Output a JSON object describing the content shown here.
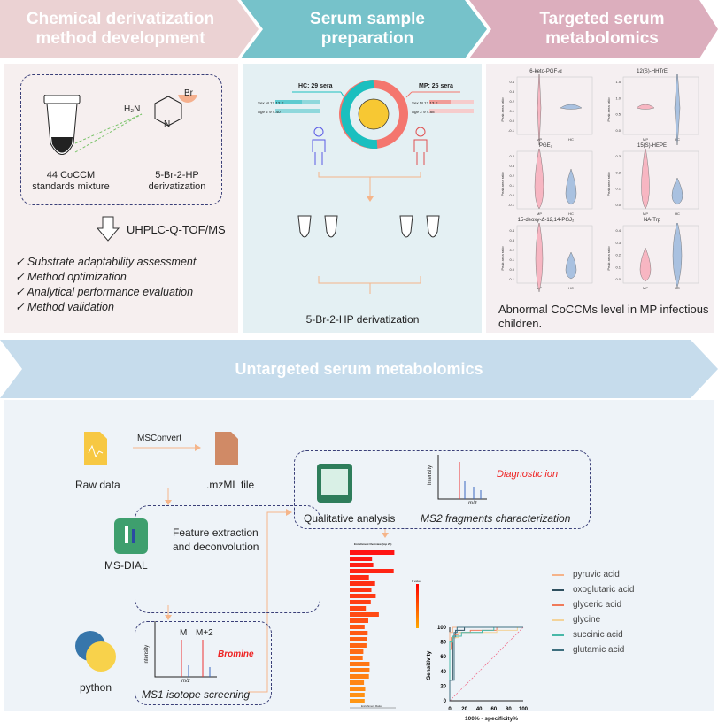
{
  "header": {
    "step1": "Chemical derivatization method development",
    "step2": "Serum sample preparation",
    "step3": "Targeted serum metabolomics",
    "untargeted": "Untargeted serum metabolomics"
  },
  "panel1": {
    "tube_label": "44 CoCCM standards mixture",
    "reagent_label": "5-Br-2-HP derivatization",
    "reagent_atoms": {
      "h2n": "H₂N",
      "n": "N",
      "br": "Br",
      "h": "H"
    },
    "instrument": "UHPLC-Q-TOF/MS",
    "checklist": [
      "Substrate adaptability assessment",
      "Method optimization",
      "Analytical performance evaluation",
      "Method validation"
    ]
  },
  "panel2": {
    "hc_label": "HC: 29 sera",
    "mp_label": "MP: 25 sera",
    "hc": {
      "sex_label": "Sex",
      "m": "M",
      "m_val": "17",
      "f_val": "12",
      "f": "F",
      "age_label": "Age",
      "age_min": "2",
      "age_max": "9",
      "age_mean": "4.40"
    },
    "mp": {
      "sex_label": "Sex",
      "m": "M",
      "m_val": "12",
      "f_val": "13",
      "f": "F",
      "age_label": "Age",
      "age_min": "2",
      "age_max": "9",
      "age_mean": "4.88"
    },
    "hc_fraction": 0.537,
    "derivatization": "5-Br-2-HP derivatization",
    "colors": {
      "hc": "#1bbfbf",
      "mp": "#f4766e"
    }
  },
  "panel3": {
    "plots": [
      {
        "title": "6-keto-PGF₁α",
        "yticks": [
          "0.4",
          "0.3",
          "0.2",
          "0.1",
          "0.0",
          "-0.1"
        ]
      },
      {
        "title": "12(S)-HHTrE",
        "yticks": [
          "1.5",
          "1.0",
          "0.5",
          "0.0"
        ]
      },
      {
        "title": "PGE₂",
        "yticks": [
          "0.4",
          "0.3",
          "0.2",
          "0.1",
          "0.0",
          "-0.1"
        ]
      },
      {
        "title": "15(S)-HEPE",
        "yticks": [
          "0.3",
          "0.2",
          "0.1",
          "0.0"
        ]
      },
      {
        "title": "15-deoxy-Δ-12,14-PGJ₂",
        "yticks": [
          "0.4",
          "0.3",
          "0.2",
          "0.1",
          "0.0",
          "-0.1"
        ]
      },
      {
        "title": "NA-Trp",
        "yticks": [
          "0.4",
          "0.3",
          "0.2",
          "0.1",
          "0.0"
        ]
      }
    ],
    "ylabel": "Peak area ratio",
    "xcats": [
      "MP",
      "HC"
    ],
    "conclusion": "Abnormal CoCCMs level in MP infectious children.",
    "colors": {
      "mp": "#f7b6c2",
      "hc": "#a9c1e0"
    }
  },
  "untargeted": {
    "raw_data": "Raw data",
    "msconvert": "MSConvert",
    "mzml": ".mzML file",
    "feature": "Feature extraction and deconvolution",
    "msdial": "MS-DIAL",
    "python": "python",
    "ms1": "MS1 isotope screening",
    "m": "M",
    "m2": "M+2",
    "bromine": "Bromine",
    "intensity": "Intensity",
    "mz": "m/z",
    "qualitative": "Qualitative analysis",
    "diagnostic": "Diagnostic ion",
    "ms2": "MS2 fragments characterization",
    "enrichment_title": "Enrichment Overview (top 25)",
    "enrichment_xlabel": "Enrichment Ratio",
    "pvalue": "P value",
    "enrichment_values": [
      7.2,
      3.6,
      3.8,
      7.1,
      3.1,
      4.1,
      3.5,
      4.2,
      3.4,
      2.6,
      4.7,
      3.0,
      2.4,
      2.9,
      2.8,
      2.7,
      2.2,
      2.1,
      3.2,
      3.2,
      3.1,
      2.3,
      2.5,
      2.4,
      2.4
    ]
  },
  "chart_data": {
    "type": "line",
    "xlabel": "100% - specificity%",
    "ylabel": "Sensitivity",
    "xlim": [
      0,
      100
    ],
    "ylim": [
      0,
      100
    ],
    "xticks": [
      "0",
      "20",
      "40",
      "60",
      "80",
      "100"
    ],
    "yticks": [
      "0",
      "20",
      "40",
      "60",
      "80",
      "100"
    ],
    "legend": "right",
    "series": [
      {
        "name": "pyruvic acid",
        "color": "#f5b38a",
        "x": [
          0,
          0,
          4,
          4,
          100
        ],
        "y": [
          0,
          93,
          93,
          100,
          100
        ]
      },
      {
        "name": "oxoglutaric acid",
        "color": "#2f4f5f",
        "x": [
          0,
          0,
          4,
          4,
          8,
          8,
          20,
          20,
          100
        ],
        "y": [
          0,
          28,
          28,
          86,
          86,
          96,
          96,
          100,
          100
        ]
      },
      {
        "name": "glyceric acid",
        "color": "#f07a5a",
        "x": [
          0,
          0,
          2,
          2,
          6,
          6,
          12,
          12,
          28,
          28,
          64,
          64,
          100
        ],
        "y": [
          0,
          70,
          70,
          86,
          86,
          90,
          90,
          93,
          93,
          96,
          96,
          100,
          100
        ]
      },
      {
        "name": "glycine",
        "color": "#f3d39a",
        "x": [
          0,
          0,
          4,
          4,
          12,
          12,
          64,
          64,
          92,
          92,
          100
        ],
        "y": [
          0,
          80,
          80,
          86,
          86,
          93,
          93,
          96,
          96,
          100,
          100
        ]
      },
      {
        "name": "succinic acid",
        "color": "#48b8a8",
        "x": [
          0,
          0,
          4,
          4,
          16,
          16,
          44,
          44,
          60,
          60,
          100
        ],
        "y": [
          0,
          80,
          80,
          88,
          88,
          93,
          93,
          96,
          96,
          100,
          100
        ]
      },
      {
        "name": "glutamic acid",
        "color": "#3e6f7f",
        "x": [
          0,
          0,
          6,
          6,
          10,
          10,
          100
        ],
        "y": [
          0,
          28,
          28,
          93,
          93,
          100,
          100
        ]
      }
    ]
  }
}
